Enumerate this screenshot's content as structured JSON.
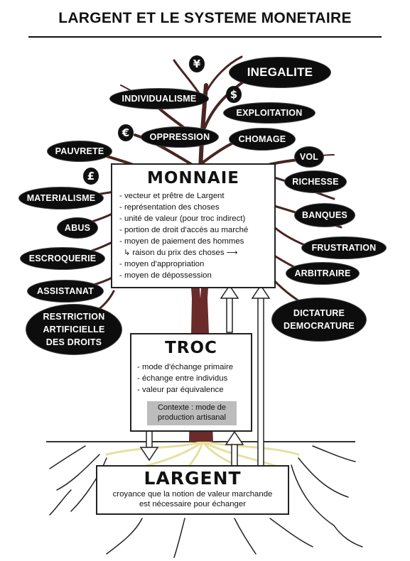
{
  "title": "LARGENT ET LE SYSTEME MONETAIRE",
  "currency_symbols": {
    "yen": "¥",
    "dollar": "$",
    "euro": "€",
    "pound": "£"
  },
  "branch_labels": {
    "inegalite": "INEGALITE",
    "individualisme": "INDIVIDUALISME",
    "exploitation": "EXPLOITATION",
    "oppression": "OPPRESSION",
    "chomage": "CHOMAGE",
    "pauvrete": "PAUVRETE",
    "vol": "VOL",
    "richesse": "RICHESSE",
    "materialisme": "MATERIALISME",
    "banques": "BANQUES",
    "abus": "ABUS",
    "frustration": "FRUSTRATION",
    "escroquerie": "ESCROQUERIE",
    "arbitraire": "ARBITRAIRE",
    "assistanat": "ASSISTANAT",
    "restriction": [
      "RESTRICTION",
      "ARTIFICIELLE",
      "DES DROITS"
    ],
    "dictature": [
      "DICTATURE",
      "DEMOCRATURE"
    ]
  },
  "monnaie": {
    "heading": "MONNAIE",
    "items": [
      "- vecteur et prêtre de Largent",
      "- représentation des choses",
      "- unité de valeur (pour troc indirect)",
      "- portion de droit d'accès au marché",
      "- moyen de paiement des hommes",
      "raison du prix des choses",
      "- moyen d'appropriation",
      "- moyen de dépossession"
    ]
  },
  "troc": {
    "heading": "TROC",
    "items": [
      "- mode d'échange primaire",
      "- échange entre individus",
      "- valeur par équivalence"
    ],
    "context": [
      "Contexte : mode de",
      "production artisanal"
    ]
  },
  "largent": {
    "heading": "LARGENT",
    "lines": [
      "croyance que la notion de valeur marchande",
      "est nécessaire pour échanger"
    ]
  },
  "colors": {
    "trunk": "#6b2b2b",
    "branches": "#4a2424",
    "roots": "#e8e2a6",
    "ground": "#333333",
    "pills": "#0d0d0d"
  }
}
